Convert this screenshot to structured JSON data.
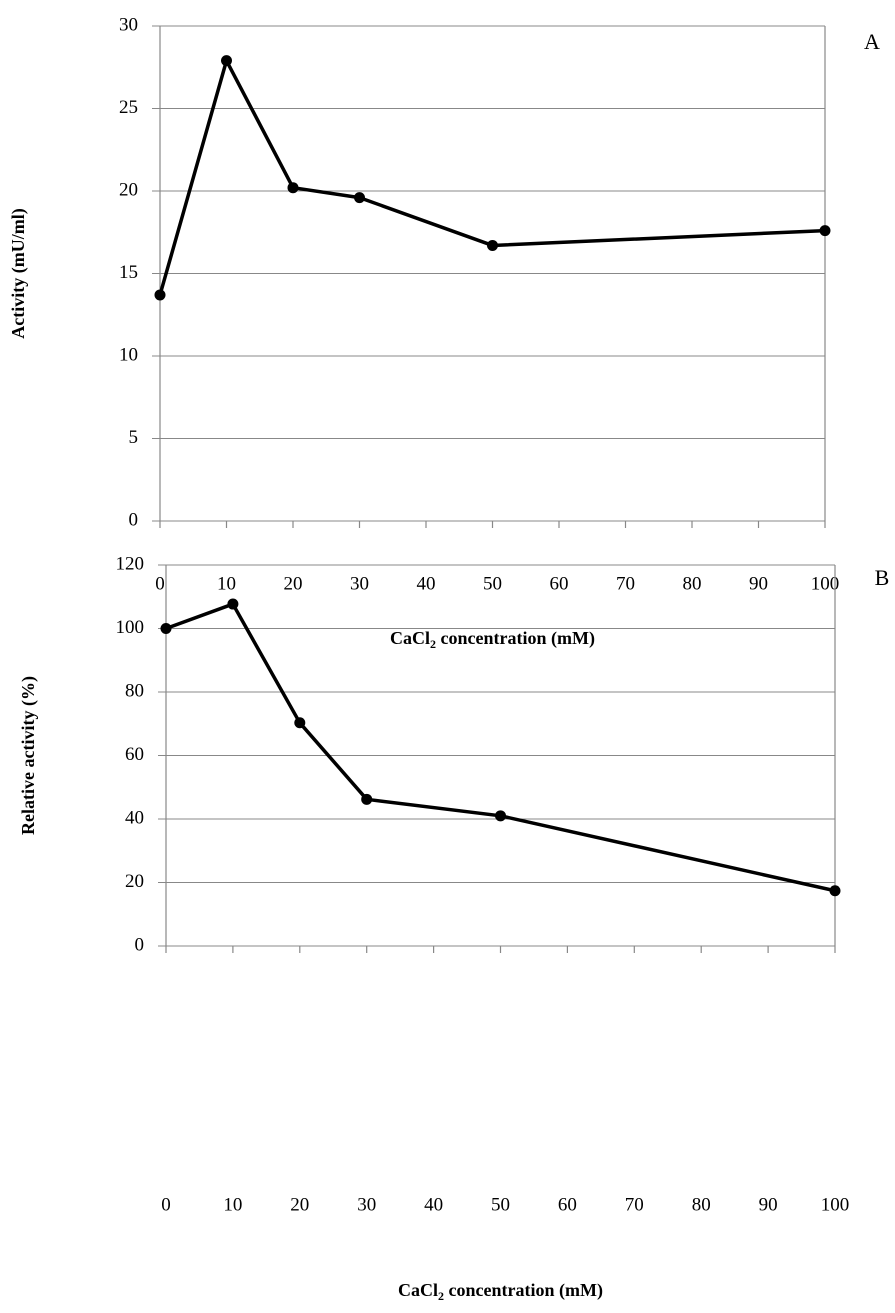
{
  "chart_data": [
    {
      "type": "line",
      "label": "A",
      "y_label": "Activity  (mU/ml)",
      "x_label": [
        "CaCl",
        "2",
        " concentration (mM)"
      ],
      "x": [
        0,
        10,
        20,
        30,
        50,
        100
      ],
      "series": [
        {
          "color": "#000000",
          "values": [
            13.7,
            27.9,
            20.2,
            19.6,
            16.7,
            17.6
          ]
        }
      ],
      "xlim": [
        0,
        100
      ],
      "xticks": [
        0,
        10,
        20,
        30,
        40,
        50,
        60,
        70,
        80,
        90,
        100
      ],
      "ylim": [
        0,
        30
      ],
      "yticks": [
        0,
        5,
        10,
        15,
        20,
        25,
        30
      ],
      "grid": true
    },
    {
      "type": "line",
      "label": "B",
      "y_label": "Relative activity (%)",
      "x_label": [
        "CaCl",
        "2",
        " concentration (mM)"
      ],
      "x": [
        0,
        10,
        20,
        30,
        50,
        100
      ],
      "series": [
        {
          "color": "#000000",
          "values": [
            100,
            107.7,
            70.3,
            46.2,
            41,
            17.4
          ]
        }
      ],
      "xlim": [
        0,
        100
      ],
      "xticks": [
        0,
        10,
        20,
        30,
        40,
        50,
        60,
        70,
        80,
        90,
        100
      ],
      "ylim": [
        0,
        120
      ],
      "yticks": [
        0,
        20,
        40,
        60,
        80,
        100,
        120
      ],
      "grid": true
    }
  ]
}
